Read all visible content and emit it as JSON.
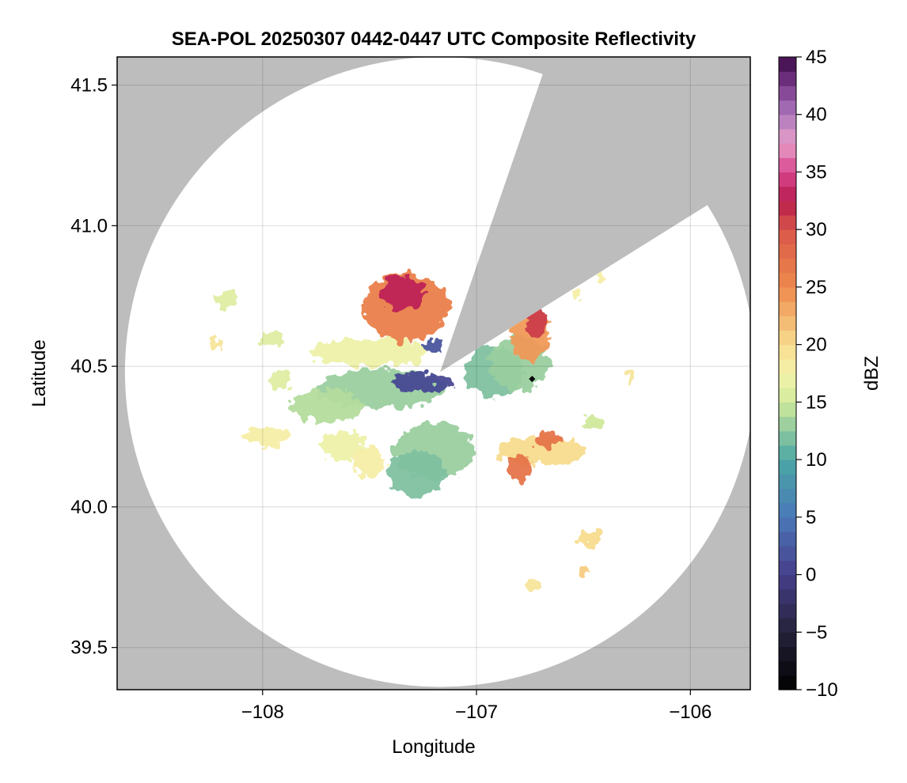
{
  "chart_data": {
    "type": "heatmap",
    "title": "SEA-POL 20250307 0442-0447 UTC Composite Reflectivity",
    "xlabel": "Longitude",
    "ylabel": "Latitude",
    "xlim": [
      -108.68,
      -105.72
    ],
    "ylim": [
      39.35,
      41.6
    ],
    "xticks": [
      -108,
      -107,
      -106
    ],
    "xtick_labels": [
      "−108",
      "−107",
      "−106"
    ],
    "yticks": [
      39.5,
      40.0,
      40.5,
      41.0,
      41.5
    ],
    "ytick_labels": [
      "39.5",
      "40.0",
      "40.5",
      "41.0",
      "41.5"
    ],
    "grid": true,
    "background_color": "#bdbdbd",
    "coverage_color": "#ffffff",
    "radar_center": {
      "lon": -107.17,
      "lat": 40.48
    },
    "radar_range_deg_lat": 1.12,
    "blocked_sector_deg": [
      19,
      58
    ],
    "marker": {
      "lon": -106.74,
      "lat": 40.455,
      "color": "#000000"
    },
    "colorbar": {
      "label": "dBZ",
      "min": -10,
      "max": 45,
      "ticks": [
        -10,
        -5,
        0,
        5,
        10,
        15,
        20,
        25,
        30,
        35,
        40,
        45
      ],
      "tick_labels": [
        "−10",
        "−5",
        "0",
        "5",
        "10",
        "15",
        "20",
        "25",
        "30",
        "35",
        "40",
        "45"
      ],
      "colormap": "spectral-with-dark-low-end"
    },
    "echo_cells": [
      {
        "lon": -107.45,
        "lat": 40.42,
        "rx": 0.3,
        "ry": 0.07,
        "dbz": 13
      },
      {
        "lon": -107.7,
        "lat": 40.36,
        "rx": 0.17,
        "ry": 0.06,
        "dbz": 14
      },
      {
        "lon": -107.5,
        "lat": 40.55,
        "rx": 0.28,
        "ry": 0.05,
        "dbz": 17
      },
      {
        "lon": -107.25,
        "lat": 40.445,
        "rx": 0.14,
        "ry": 0.03,
        "dbz": 1
      },
      {
        "lon": -107.33,
        "lat": 40.71,
        "rx": 0.2,
        "ry": 0.12,
        "dbz": 26
      },
      {
        "lon": -107.35,
        "lat": 40.76,
        "rx": 0.1,
        "ry": 0.06,
        "dbz": 33
      },
      {
        "lon": -106.92,
        "lat": 40.48,
        "rx": 0.14,
        "ry": 0.09,
        "dbz": 12
      },
      {
        "lon": -106.8,
        "lat": 40.51,
        "rx": 0.14,
        "ry": 0.1,
        "dbz": 13
      },
      {
        "lon": -106.75,
        "lat": 40.62,
        "rx": 0.09,
        "ry": 0.1,
        "dbz": 24
      },
      {
        "lon": -106.72,
        "lat": 40.66,
        "rx": 0.05,
        "ry": 0.06,
        "dbz": 31
      },
      {
        "lon": -107.2,
        "lat": 40.2,
        "rx": 0.19,
        "ry": 0.1,
        "dbz": 13
      },
      {
        "lon": -107.28,
        "lat": 40.12,
        "rx": 0.14,
        "ry": 0.08,
        "dbz": 12
      },
      {
        "lon": -106.7,
        "lat": 40.2,
        "rx": 0.22,
        "ry": 0.05,
        "dbz": 20
      },
      {
        "lon": -106.8,
        "lat": 40.14,
        "rx": 0.06,
        "ry": 0.05,
        "dbz": 27
      },
      {
        "lon": -106.66,
        "lat": 40.24,
        "rx": 0.07,
        "ry": 0.03,
        "dbz": 27
      },
      {
        "lon": -107.98,
        "lat": 40.25,
        "rx": 0.1,
        "ry": 0.04,
        "dbz": 18
      },
      {
        "lon": -107.63,
        "lat": 40.22,
        "rx": 0.11,
        "ry": 0.05,
        "dbz": 17
      },
      {
        "lon": -107.5,
        "lat": 40.16,
        "rx": 0.08,
        "ry": 0.05,
        "dbz": 18
      },
      {
        "lon": -107.95,
        "lat": 40.6,
        "rx": 0.06,
        "ry": 0.03,
        "dbz": 16
      },
      {
        "lon": -107.92,
        "lat": 40.45,
        "rx": 0.05,
        "ry": 0.03,
        "dbz": 16
      },
      {
        "lon": -108.17,
        "lat": 40.74,
        "rx": 0.05,
        "ry": 0.03,
        "dbz": 16
      },
      {
        "lon": -108.22,
        "lat": 40.58,
        "rx": 0.03,
        "ry": 0.02,
        "dbz": 19
      },
      {
        "lon": -106.47,
        "lat": 39.89,
        "rx": 0.05,
        "ry": 0.03,
        "dbz": 20
      },
      {
        "lon": -106.5,
        "lat": 39.78,
        "rx": 0.03,
        "ry": 0.015,
        "dbz": 21
      },
      {
        "lon": -106.74,
        "lat": 39.72,
        "rx": 0.03,
        "ry": 0.02,
        "dbz": 19
      },
      {
        "lon": -107.2,
        "lat": 40.57,
        "rx": 0.05,
        "ry": 0.02,
        "dbz": 2
      },
      {
        "lon": -106.46,
        "lat": 40.3,
        "rx": 0.05,
        "ry": 0.02,
        "dbz": 15
      },
      {
        "lon": -106.28,
        "lat": 40.46,
        "rx": 0.02,
        "ry": 0.02,
        "dbz": 19
      },
      {
        "lon": -106.53,
        "lat": 40.76,
        "rx": 0.02,
        "ry": 0.02,
        "dbz": 18
      },
      {
        "lon": -106.42,
        "lat": 40.82,
        "rx": 0.02,
        "ry": 0.02,
        "dbz": 18
      }
    ]
  }
}
